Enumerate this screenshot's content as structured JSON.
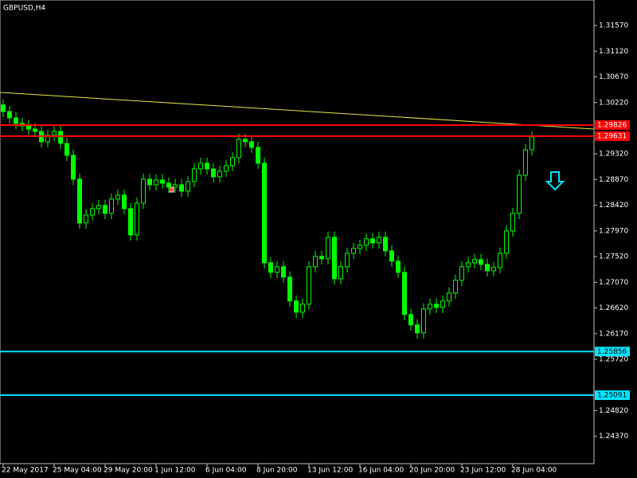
{
  "chart_data": {
    "type": "candlestick",
    "title": "GBPUSD,H4",
    "background": "#000000",
    "up_color": "#00ff00",
    "down_color": "#00ff00",
    "ylim": [
      1.2417,
      1.3199
    ],
    "yticks": [
      {
        "value": 1.3157,
        "label": "1.31570"
      },
      {
        "value": 1.3112,
        "label": "1.31120"
      },
      {
        "value": 1.3067,
        "label": "1.30670"
      },
      {
        "value": 1.3022,
        "label": "1.30220"
      },
      {
        "value": 1.2932,
        "label": "1.29320"
      },
      {
        "value": 1.2887,
        "label": "1.28870"
      },
      {
        "value": 1.2842,
        "label": "1.28420"
      },
      {
        "value": 1.2797,
        "label": "1.27970"
      },
      {
        "value": 1.2752,
        "label": "1.27520"
      },
      {
        "value": 1.2707,
        "label": "1.27070"
      },
      {
        "value": 1.2662,
        "label": "1.26620"
      },
      {
        "value": 1.2617,
        "label": "1.26170"
      },
      {
        "value": 1.2572,
        "label": "1.25720"
      },
      {
        "value": 1.2482,
        "label": "1.24820"
      },
      {
        "value": 1.2437,
        "label": "1.24370"
      }
    ],
    "categories": [
      "22 May 2017",
      null,
      null,
      null,
      null,
      null,
      null,
      null,
      "25 May 04:00",
      null,
      null,
      null,
      null,
      null,
      null,
      null,
      "29 May 20:00",
      null,
      null,
      null,
      null,
      null,
      null,
      null,
      "1 Jun 12:00",
      null,
      null,
      null,
      null,
      null,
      null,
      null,
      "6 Jun 04:00",
      null,
      null,
      null,
      null,
      null,
      null,
      null,
      "8 Jun 20:00",
      null,
      null,
      null,
      null,
      null,
      null,
      null,
      "13 Jun 12:00",
      null,
      null,
      null,
      null,
      null,
      null,
      null,
      "16 Jun 04:00",
      null,
      null,
      null,
      null,
      null,
      null,
      null,
      "20 Jun 20:00",
      null,
      null,
      null,
      null,
      null,
      null,
      null,
      "23 Jun 12:00",
      null,
      null,
      null,
      null,
      null,
      null,
      null,
      "28 Jun 04:00",
      null,
      null,
      null
    ],
    "open": [
      1.3018,
      1.30063,
      1.29952,
      1.29854,
      1.29812,
      1.29756,
      1.29714,
      1.29533,
      1.29645,
      1.29714,
      1.29505,
      1.29296,
      1.28877,
      1.2811,
      1.28249,
      1.28361,
      1.28417,
      1.28277,
      1.28528,
      1.28598,
      1.28361,
      1.279,
      1.28458,
      1.28877,
      1.28779,
      1.28863,
      1.28807,
      1.28738,
      1.28779,
      1.28668,
      1.28835,
      1.29058,
      1.29156,
      1.29058,
      1.28919,
      1.29017,
      1.29114,
      1.29254,
      1.29575,
      1.29533,
      1.29435,
      1.29156,
      1.27412,
      1.27245,
      1.27342,
      1.27161,
      1.26742,
      1.26547,
      1.26686,
      1.27342,
      1.27524,
      1.27482,
      1.27859,
      1.27133,
      1.27342,
      1.27579,
      1.27663,
      1.27719,
      1.27831,
      1.27761,
      1.27859,
      1.27621,
      1.2744,
      1.27245,
      1.26505,
      1.26324,
      1.26184,
      1.26603,
      1.26686,
      1.26631,
      1.26742,
      1.26882,
      1.27105,
      1.27342,
      1.27412,
      1.27468,
      1.27384,
      1.27273,
      1.27328,
      1.27579,
      1.2797,
      1.28277,
      1.28947,
      1.29393
    ],
    "high": [
      1.3028,
      1.30163,
      1.30052,
      1.29954,
      1.29912,
      1.29856,
      1.29814,
      1.29745,
      1.29814,
      1.29814,
      1.29605,
      1.29396,
      1.28977,
      1.28349,
      1.28461,
      1.28517,
      1.28517,
      1.28628,
      1.28698,
      1.28698,
      1.28461,
      1.28558,
      1.28977,
      1.28977,
      1.28963,
      1.28963,
      1.28907,
      1.28879,
      1.28879,
      1.28935,
      1.29158,
      1.29256,
      1.29256,
      1.29158,
      1.29117,
      1.29214,
      1.29354,
      1.29675,
      1.29675,
      1.29633,
      1.29535,
      1.29256,
      1.27512,
      1.27442,
      1.27442,
      1.27261,
      1.26842,
      1.26786,
      1.27442,
      1.27624,
      1.27624,
      1.27959,
      1.27959,
      1.27442,
      1.27679,
      1.27763,
      1.27819,
      1.27931,
      1.27931,
      1.27959,
      1.27959,
      1.27721,
      1.2754,
      1.27345,
      1.26605,
      1.26424,
      1.26703,
      1.26786,
      1.26786,
      1.26842,
      1.26982,
      1.27205,
      1.27442,
      1.27512,
      1.27568,
      1.27568,
      1.27484,
      1.27428,
      1.27679,
      1.2807,
      1.28377,
      1.29047,
      1.29493,
      1.29717
    ],
    "low": [
      1.29963,
      1.29852,
      1.29754,
      1.29712,
      1.29656,
      1.29614,
      1.29433,
      1.29433,
      1.29545,
      1.29405,
      1.29196,
      1.28777,
      1.2801,
      1.2801,
      1.28149,
      1.28261,
      1.28177,
      1.28177,
      1.28428,
      1.28261,
      1.278,
      1.278,
      1.28358,
      1.28679,
      1.28679,
      1.28707,
      1.28638,
      1.28638,
      1.28568,
      1.28568,
      1.28735,
      1.28958,
      1.28958,
      1.28819,
      1.28819,
      1.28917,
      1.29014,
      1.29154,
      1.29433,
      1.29335,
      1.29056,
      1.27312,
      1.27145,
      1.27145,
      1.27061,
      1.26642,
      1.26447,
      1.26447,
      1.26586,
      1.27242,
      1.27382,
      1.27382,
      1.27033,
      1.27033,
      1.27242,
      1.27479,
      1.27563,
      1.27619,
      1.27661,
      1.27661,
      1.27521,
      1.2734,
      1.27145,
      1.26405,
      1.26224,
      1.26084,
      1.26084,
      1.26503,
      1.26531,
      1.26531,
      1.26642,
      1.26782,
      1.27005,
      1.27242,
      1.27312,
      1.27284,
      1.27173,
      1.27173,
      1.27228,
      1.27479,
      1.2787,
      1.28177,
      1.28847,
      1.29293
    ],
    "close": [
      1.30063,
      1.29952,
      1.29854,
      1.29812,
      1.29756,
      1.29714,
      1.29533,
      1.29645,
      1.29714,
      1.29505,
      1.29296,
      1.28877,
      1.2811,
      1.28249,
      1.28361,
      1.28417,
      1.28277,
      1.28528,
      1.28598,
      1.28361,
      1.279,
      1.28458,
      1.28877,
      1.28779,
      1.28863,
      1.28807,
      1.28738,
      1.28779,
      1.28668,
      1.28835,
      1.29058,
      1.29156,
      1.29058,
      1.28919,
      1.29017,
      1.29114,
      1.29254,
      1.29575,
      1.29533,
      1.29435,
      1.29156,
      1.27412,
      1.27245,
      1.27342,
      1.27161,
      1.26742,
      1.26547,
      1.26686,
      1.27342,
      1.27524,
      1.27482,
      1.27859,
      1.27133,
      1.27342,
      1.27579,
      1.27663,
      1.27719,
      1.27831,
      1.27761,
      1.27859,
      1.27621,
      1.2744,
      1.27245,
      1.26505,
      1.26324,
      1.26184,
      1.26603,
      1.26686,
      1.26631,
      1.26742,
      1.26882,
      1.27105,
      1.27342,
      1.27412,
      1.27468,
      1.27384,
      1.27273,
      1.27328,
      1.27579,
      1.2797,
      1.28277,
      1.28947,
      1.29393,
      1.29617
    ],
    "levels": [
      {
        "value": 1.29826,
        "color": "#ff0000",
        "text_color": "#ffffff"
      },
      {
        "value": 1.29631,
        "color": "#ff0000",
        "text_color": "#ffffff"
      },
      {
        "value": 1.25856,
        "color": "#00e5ff",
        "text_color": "#000000"
      },
      {
        "value": 1.25091,
        "color": "#00e5ff",
        "text_color": "#000000"
      }
    ],
    "trendline": {
      "values": [
        1.30398,
        1.29756
      ],
      "color": "#e8e84a"
    }
  }
}
